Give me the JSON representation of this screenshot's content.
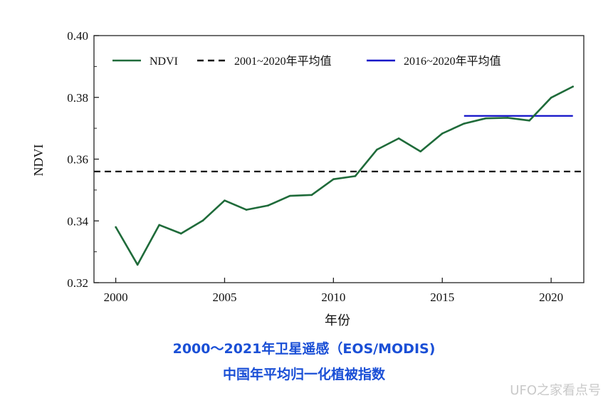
{
  "chart_data": {
    "type": "line",
    "xlabel": "年份",
    "ylabel": "NDVI",
    "xlim": [
      1999,
      2021.5
    ],
    "ylim": [
      0.32,
      0.4
    ],
    "xticks": [
      2000,
      2005,
      2010,
      2015,
      2020
    ],
    "yticks": [
      "0.32",
      "0.34",
      "0.36",
      "0.38",
      "0.40"
    ],
    "legend_position": "top",
    "series": [
      {
        "name": "NDVI",
        "color": "#1f6b3a",
        "x": [
          2000,
          2001,
          2002,
          2003,
          2004,
          2005,
          2006,
          2007,
          2008,
          2009,
          2010,
          2011,
          2012,
          2013,
          2014,
          2015,
          2016,
          2017,
          2018,
          2019,
          2020,
          2021
        ],
        "values": [
          0.338,
          0.3258,
          0.3387,
          0.3359,
          0.3401,
          0.3466,
          0.3436,
          0.345,
          0.3481,
          0.3484,
          0.3535,
          0.3545,
          0.3631,
          0.3667,
          0.3625,
          0.3683,
          0.3715,
          0.3732,
          0.3734,
          0.3725,
          0.3799,
          0.3835
        ]
      }
    ],
    "reference_lines": [
      {
        "name": "2001~2020年平均值",
        "value": 0.356,
        "x_range": [
          1999,
          2021.5
        ],
        "style": "dashed",
        "color": "#111111"
      },
      {
        "name": "2016~2020年平均值",
        "value": 0.374,
        "x_range": [
          2016,
          2021
        ],
        "style": "solid",
        "color": "#1010c8"
      }
    ]
  },
  "caption": {
    "line1": "2000～2021年卫星遥感（EOS/MODIS)",
    "line2": "中国年平均归一化植被指数"
  },
  "watermark": "UFO之家看点号"
}
